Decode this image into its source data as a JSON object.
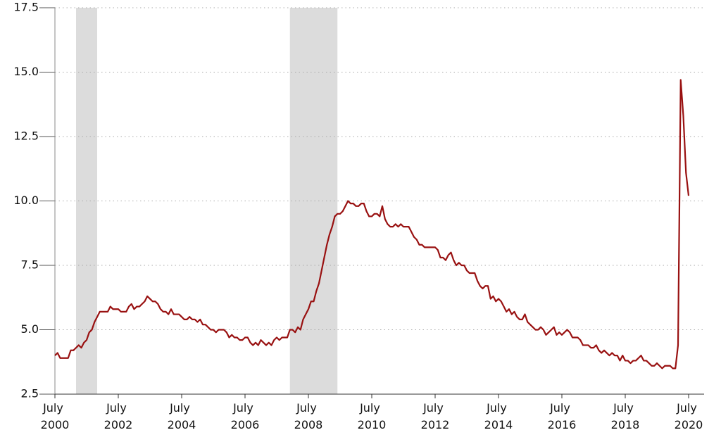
{
  "chart_data": {
    "type": "line",
    "x": [
      "2000-07",
      "2000-08",
      "2000-09",
      "2000-10",
      "2000-11",
      "2000-12",
      "2001-01",
      "2001-02",
      "2001-03",
      "2001-04",
      "2001-05",
      "2001-06",
      "2001-07",
      "2001-08",
      "2001-09",
      "2001-10",
      "2001-11",
      "2001-12",
      "2002-01",
      "2002-02",
      "2002-03",
      "2002-04",
      "2002-05",
      "2002-06",
      "2002-07",
      "2002-08",
      "2002-09",
      "2002-10",
      "2002-11",
      "2002-12",
      "2003-01",
      "2003-02",
      "2003-03",
      "2003-04",
      "2003-05",
      "2003-06",
      "2003-07",
      "2003-08",
      "2003-09",
      "2003-10",
      "2003-11",
      "2003-12",
      "2004-01",
      "2004-02",
      "2004-03",
      "2004-04",
      "2004-05",
      "2004-06",
      "2004-07",
      "2004-08",
      "2004-09",
      "2004-10",
      "2004-11",
      "2004-12",
      "2005-01",
      "2005-02",
      "2005-03",
      "2005-04",
      "2005-05",
      "2005-06",
      "2005-07",
      "2005-08",
      "2005-09",
      "2005-10",
      "2005-11",
      "2005-12",
      "2006-01",
      "2006-02",
      "2006-03",
      "2006-04",
      "2006-05",
      "2006-06",
      "2006-07",
      "2006-08",
      "2006-09",
      "2006-10",
      "2006-11",
      "2006-12",
      "2007-01",
      "2007-02",
      "2007-03",
      "2007-04",
      "2007-05",
      "2007-06",
      "2007-07",
      "2007-08",
      "2007-09",
      "2007-10",
      "2007-11",
      "2007-12",
      "2008-01",
      "2008-02",
      "2008-03",
      "2008-04",
      "2008-05",
      "2008-06",
      "2008-07",
      "2008-08",
      "2008-09",
      "2008-10",
      "2008-11",
      "2008-12",
      "2009-01",
      "2009-02",
      "2009-03",
      "2009-04",
      "2009-05",
      "2009-06",
      "2009-07",
      "2009-08",
      "2009-09",
      "2009-10",
      "2009-11",
      "2009-12",
      "2010-01",
      "2010-02",
      "2010-03",
      "2010-04",
      "2010-05",
      "2010-06",
      "2010-07",
      "2010-08",
      "2010-09",
      "2010-10",
      "2010-11",
      "2010-12",
      "2011-01",
      "2011-02",
      "2011-03",
      "2011-04",
      "2011-05",
      "2011-06",
      "2011-07",
      "2011-08",
      "2011-09",
      "2011-10",
      "2011-11",
      "2011-12",
      "2012-01",
      "2012-02",
      "2012-03",
      "2012-04",
      "2012-05",
      "2012-06",
      "2012-07",
      "2012-08",
      "2012-09",
      "2012-10",
      "2012-11",
      "2012-12",
      "2013-01",
      "2013-02",
      "2013-03",
      "2013-04",
      "2013-05",
      "2013-06",
      "2013-07",
      "2013-08",
      "2013-09",
      "2013-10",
      "2013-11",
      "2013-12",
      "2014-01",
      "2014-02",
      "2014-03",
      "2014-04",
      "2014-05",
      "2014-06",
      "2014-07",
      "2014-08",
      "2014-09",
      "2014-10",
      "2014-11",
      "2014-12",
      "2015-01",
      "2015-02",
      "2015-03",
      "2015-04",
      "2015-05",
      "2015-06",
      "2015-07",
      "2015-08",
      "2015-09",
      "2015-10",
      "2015-11",
      "2015-12",
      "2016-01",
      "2016-02",
      "2016-03",
      "2016-04",
      "2016-05",
      "2016-06",
      "2016-07",
      "2016-08",
      "2016-09",
      "2016-10",
      "2016-11",
      "2016-12",
      "2017-01",
      "2017-02",
      "2017-03",
      "2017-04",
      "2017-05",
      "2017-06",
      "2017-07",
      "2017-08",
      "2017-09",
      "2017-10",
      "2017-11",
      "2017-12",
      "2018-01",
      "2018-02",
      "2018-03",
      "2018-04",
      "2018-05",
      "2018-06",
      "2018-07",
      "2018-08",
      "2018-09",
      "2018-10",
      "2018-11",
      "2018-12",
      "2019-01",
      "2019-02",
      "2019-03",
      "2019-04",
      "2019-05",
      "2019-06",
      "2019-07",
      "2019-08",
      "2019-09",
      "2019-10",
      "2019-11",
      "2019-12",
      "2020-01",
      "2020-02",
      "2020-03",
      "2020-04",
      "2020-05",
      "2020-06",
      "2020-07"
    ],
    "values": [
      4.0,
      4.1,
      3.9,
      3.9,
      3.9,
      3.9,
      4.2,
      4.2,
      4.3,
      4.4,
      4.3,
      4.5,
      4.6,
      4.9,
      5.0,
      5.3,
      5.5,
      5.7,
      5.7,
      5.7,
      5.7,
      5.9,
      5.8,
      5.8,
      5.8,
      5.7,
      5.7,
      5.7,
      5.9,
      6.0,
      5.8,
      5.9,
      5.9,
      6.0,
      6.1,
      6.3,
      6.2,
      6.1,
      6.1,
      6.0,
      5.8,
      5.7,
      5.7,
      5.6,
      5.8,
      5.6,
      5.6,
      5.6,
      5.5,
      5.4,
      5.4,
      5.5,
      5.4,
      5.4,
      5.3,
      5.4,
      5.2,
      5.2,
      5.1,
      5.0,
      5.0,
      4.9,
      5.0,
      5.0,
      5.0,
      4.9,
      4.7,
      4.8,
      4.7,
      4.7,
      4.6,
      4.6,
      4.7,
      4.7,
      4.5,
      4.4,
      4.5,
      4.4,
      4.6,
      4.5,
      4.4,
      4.5,
      4.4,
      4.6,
      4.7,
      4.6,
      4.7,
      4.7,
      4.7,
      5.0,
      5.0,
      4.9,
      5.1,
      5.0,
      5.4,
      5.6,
      5.8,
      6.1,
      6.1,
      6.5,
      6.8,
      7.3,
      7.8,
      8.3,
      8.7,
      9.0,
      9.4,
      9.5,
      9.5,
      9.6,
      9.8,
      10.0,
      9.9,
      9.9,
      9.8,
      9.8,
      9.9,
      9.9,
      9.6,
      9.4,
      9.4,
      9.5,
      9.5,
      9.4,
      9.8,
      9.3,
      9.1,
      9.0,
      9.0,
      9.1,
      9.0,
      9.1,
      9.0,
      9.0,
      9.0,
      8.8,
      8.6,
      8.5,
      8.3,
      8.3,
      8.2,
      8.2,
      8.2,
      8.2,
      8.2,
      8.1,
      7.8,
      7.8,
      7.7,
      7.9,
      8.0,
      7.7,
      7.5,
      7.6,
      7.5,
      7.5,
      7.3,
      7.2,
      7.2,
      7.2,
      6.9,
      6.7,
      6.6,
      6.7,
      6.7,
      6.2,
      6.3,
      6.1,
      6.2,
      6.1,
      5.9,
      5.7,
      5.8,
      5.6,
      5.7,
      5.5,
      5.4,
      5.4,
      5.6,
      5.3,
      5.2,
      5.1,
      5.0,
      5.0,
      5.1,
      5.0,
      4.8,
      4.9,
      5.0,
      5.1,
      4.8,
      4.9,
      4.8,
      4.9,
      5.0,
      4.9,
      4.7,
      4.7,
      4.7,
      4.6,
      4.4,
      4.4,
      4.4,
      4.3,
      4.3,
      4.4,
      4.2,
      4.1,
      4.2,
      4.1,
      4.0,
      4.1,
      4.0,
      4.0,
      3.8,
      4.0,
      3.8,
      3.8,
      3.7,
      3.8,
      3.8,
      3.9,
      4.0,
      3.8,
      3.8,
      3.7,
      3.6,
      3.6,
      3.7,
      3.6,
      3.5,
      3.6,
      3.6,
      3.6,
      3.5,
      3.5,
      4.4,
      14.7,
      13.3,
      11.1,
      10.2
    ],
    "color": "#991111",
    "recessions": [
      {
        "start": "2001-03",
        "end": "2001-11"
      },
      {
        "start": "2007-12",
        "end": "2009-06"
      }
    ],
    "recession_color": "#dcdcdc",
    "xlim": [
      "2000-07",
      "2020-07"
    ],
    "xticks": [
      {
        "value": "2000-07",
        "label": "July 2000"
      },
      {
        "value": "2002-07",
        "label": "July 2002"
      },
      {
        "value": "2004-07",
        "label": "July 2004"
      },
      {
        "value": "2006-07",
        "label": "July 2006"
      },
      {
        "value": "2008-07",
        "label": "July 2008"
      },
      {
        "value": "2010-07",
        "label": "July 2010"
      },
      {
        "value": "2012-07",
        "label": "July 2012"
      },
      {
        "value": "2014-07",
        "label": "July 2014"
      },
      {
        "value": "2016-07",
        "label": "July 2016"
      },
      {
        "value": "2018-07",
        "label": "July 2018"
      },
      {
        "value": "2020-07",
        "label": "July 2020"
      }
    ],
    "ylim": [
      2.5,
      17.5
    ],
    "yticks": [
      2.5,
      {
        "value": 5,
        "label": "5.0"
      },
      7.5,
      {
        "value": 10,
        "label": "10.0"
      },
      12.5,
      {
        "value": 15,
        "label": "15.0"
      },
      17.5
    ],
    "grid": true
  }
}
